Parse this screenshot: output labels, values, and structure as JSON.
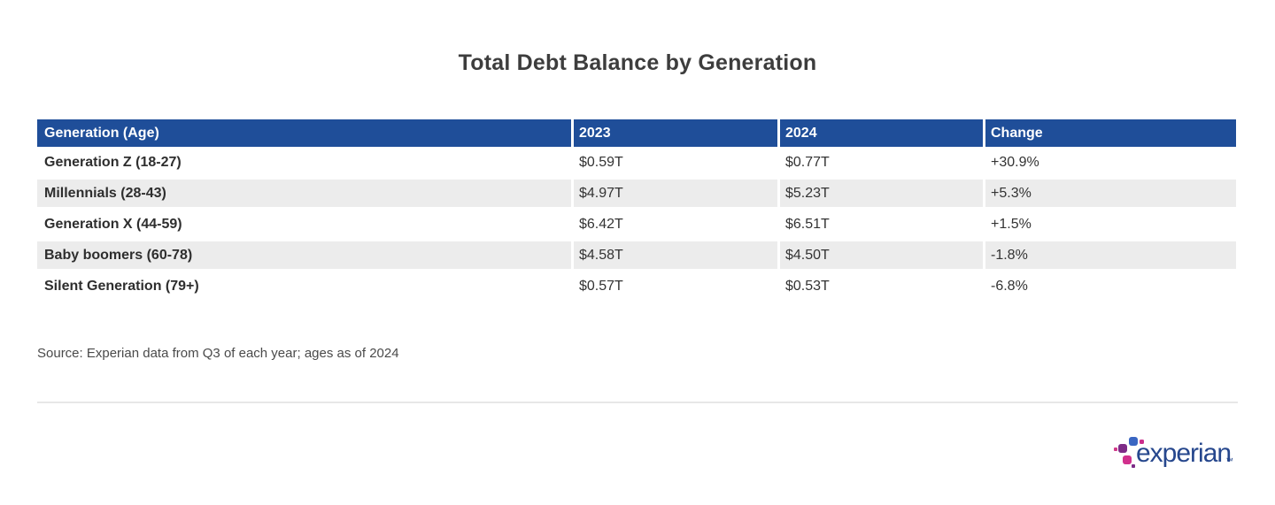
{
  "chart_data": {
    "type": "table",
    "title": "Total Debt Balance by Generation",
    "columns": [
      "Generation (Age)",
      "2023",
      "2024",
      "Change"
    ],
    "rows": [
      [
        "Generation Z (18-27)",
        "$0.59T",
        "$0.77T",
        "+30.9%"
      ],
      [
        "Millennials (28-43)",
        "$4.97T",
        "$5.23T",
        "+5.3%"
      ],
      [
        "Generation X (44-59)",
        "$6.42T",
        "$6.51T",
        "+1.5%"
      ],
      [
        "Baby boomers (60-78)",
        "$4.58T",
        "$4.50T",
        "-1.8%"
      ],
      [
        "Silent Generation (79+)",
        "$0.57T",
        "$0.53T",
        "-6.8%"
      ]
    ],
    "source_note": "Source: Experian data from Q3 of each year; ages as of 2024"
  },
  "logo": {
    "brand": "experian",
    "trademark": "™"
  },
  "colors": {
    "header_bg": "#1f4e99",
    "header_text": "#ffffff",
    "row_alt_bg": "#ececec",
    "body_text": "#333333",
    "title_text": "#3d3d3d",
    "divider": "#e7e7e7",
    "brand_wordmark_blue": "#26478d",
    "brand_light_blue": "#3a66c2",
    "brand_purple": "#7d2b87",
    "brand_magenta": "#d1308d"
  }
}
